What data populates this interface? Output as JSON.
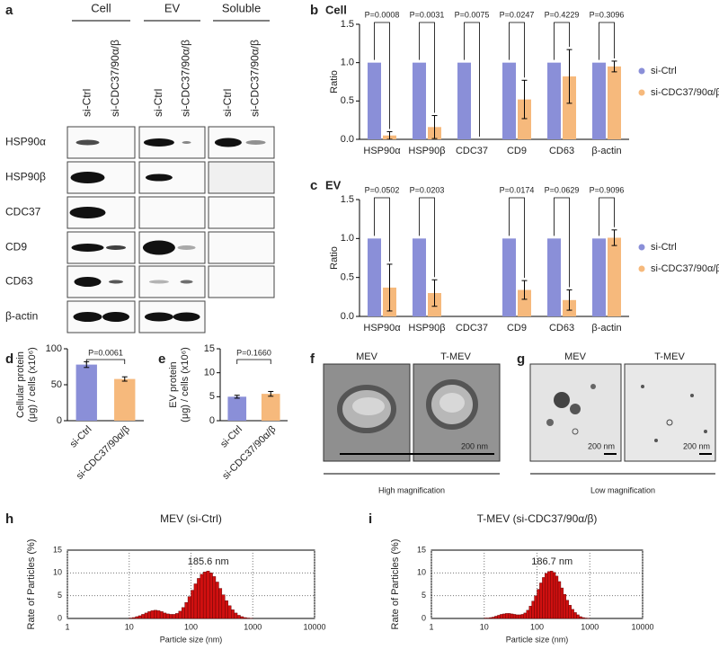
{
  "blot": {
    "panel": "a",
    "groups": [
      "Cell",
      "EV",
      "Soluble"
    ],
    "lanes": [
      "si-Ctrl",
      "si-CDC37/90α/β"
    ],
    "proteins": [
      "HSP90α",
      "HSP90β",
      "CDC37",
      "CD9",
      "CD63",
      "β-actin"
    ]
  },
  "micrographs": [
    {
      "panel": "f",
      "labels": [
        "MEV",
        "T-MEV"
      ],
      "scale": "200 nm",
      "caption": "High magnification"
    },
    {
      "panel": "g",
      "labels": [
        "MEV",
        "T-MEV"
      ],
      "scale": "200 nm",
      "caption": "Low magnification"
    }
  ],
  "chart_data": [
    {
      "type": "bar",
      "panel": "b",
      "title": "Cell",
      "ylabel": "Ratio",
      "categories": [
        "HSP90α",
        "HSP90β",
        "CDC37",
        "CD9",
        "CD63",
        "β-actin"
      ],
      "series": [
        {
          "name": "si-Ctrl",
          "color": "#8a8fd8",
          "values": [
            1,
            1,
            1,
            1,
            1,
            1
          ]
        },
        {
          "name": "si-CDC37/90α/β",
          "color": "#f6b97c",
          "values": [
            0.05,
            0.16,
            0,
            0.52,
            0.82,
            0.95
          ],
          "errors": [
            0.05,
            0.15,
            0,
            0.25,
            0.35,
            0.07
          ]
        }
      ],
      "p_values": [
        "P=0.0008",
        "P=0.0031",
        "P=0.0075",
        "P=0.0247",
        "P=0.4229",
        "P=0.3096"
      ],
      "ylim": [
        0,
        1.5
      ],
      "yticks": [
        {
          "value": 0,
          "label": "0.0"
        },
        {
          "value": 0.5,
          "label": "0.5"
        },
        {
          "value": 1,
          "label": "1.0"
        },
        {
          "value": 1.5,
          "label": "1.5"
        }
      ]
    },
    {
      "type": "bar",
      "panel": "c",
      "title": "EV",
      "ylabel": "Ratio",
      "categories": [
        "HSP90α",
        "HSP90β",
        "CDC37",
        "CD9",
        "CD63",
        "β-actin"
      ],
      "series": [
        {
          "name": "si-Ctrl",
          "color": "#8a8fd8",
          "values": [
            1,
            1,
            null,
            1,
            1,
            1
          ]
        },
        {
          "name": "si-CDC37/90α/β",
          "color": "#f6b97c",
          "values": [
            0.37,
            0.3,
            null,
            0.34,
            0.21,
            1.01
          ],
          "errors": [
            0.3,
            0.17,
            null,
            0.12,
            0.13,
            0.1
          ]
        }
      ],
      "p_values": [
        "P=0.0502",
        "P=0.0203",
        null,
        "P=0.0174",
        "P=0.0629",
        "P=0.9096"
      ],
      "ylim": [
        0,
        1.5
      ],
      "yticks": [
        {
          "value": 0,
          "label": "0.0"
        },
        {
          "value": 0.5,
          "label": "0.5"
        },
        {
          "value": 1,
          "label": "1.0"
        },
        {
          "value": 1.5,
          "label": "1.5"
        }
      ]
    },
    {
      "type": "bar",
      "panel": "d",
      "ylabel": [
        "Cellular protein",
        "(μg) / cells (x10⁶)"
      ],
      "categories": [
        "si-Ctrl",
        "si-CDC37/90α/β"
      ],
      "values": [
        78,
        58
      ],
      "errors": [
        4,
        3
      ],
      "colors": [
        "#8a8fd8",
        "#f6b97c"
      ],
      "p_value": "P=0.0061",
      "ylim": [
        0,
        100
      ],
      "yticks": [
        0,
        50,
        100
      ]
    },
    {
      "type": "bar",
      "panel": "e",
      "ylabel": [
        "EV protein",
        "(μg) / cells (x10⁶)"
      ],
      "categories": [
        "si-Ctrl",
        "si-CDC37/90α/β"
      ],
      "values": [
        5.0,
        5.6
      ],
      "errors": [
        0.3,
        0.5
      ],
      "colors": [
        "#8a8fd8",
        "#f6b97c"
      ],
      "p_value": "P=0.1660",
      "ylim": [
        0,
        15
      ],
      "yticks": [
        0,
        5,
        10,
        15
      ]
    },
    {
      "type": "histogram",
      "panel": "h",
      "title": "MEV (si-Ctrl)",
      "annotation": "185.6 nm",
      "xlabel": "Particle size (nm)",
      "ylabel": "Rate of Particles (%)",
      "color": "#d01010",
      "xscale": "log",
      "grid": true,
      "bins": [
        10,
        11.2,
        12.6,
        14.1,
        15.8,
        17.8,
        20,
        22.4,
        25.1,
        28.2,
        31.6,
        35.5,
        39.8,
        44.7,
        50.1,
        56.2,
        63.1,
        70.8,
        79.4,
        89.1,
        100,
        112,
        126,
        141,
        158,
        178,
        200,
        224,
        251,
        282,
        316,
        355,
        398,
        447,
        501,
        562,
        631,
        708,
        794,
        891,
        1000
      ],
      "values": [
        0.1,
        0.2,
        0.4,
        0.6,
        0.9,
        1.2,
        1.5,
        1.7,
        1.8,
        1.7,
        1.5,
        1.2,
        1.0,
        0.9,
        0.9,
        1.1,
        1.6,
        2.4,
        3.5,
        4.8,
        6.2,
        7.6,
        8.8,
        9.7,
        10.2,
        10.4,
        10.0,
        9.2,
        8.0,
        6.6,
        5.2,
        3.9,
        2.8,
        1.9,
        1.2,
        0.7,
        0.4,
        0.2,
        0.1,
        0.05
      ],
      "xlim": [
        1,
        10000
      ],
      "xticks": [
        1,
        10,
        100,
        1000,
        10000
      ],
      "ylim": [
        0,
        15
      ],
      "yticks": [
        0,
        5,
        10,
        15
      ]
    },
    {
      "type": "histogram",
      "panel": "i",
      "title": "T-MEV (si-CDC37/90α/β)",
      "annotation": "186.7 nm",
      "xlabel": "Particle size (nm)",
      "ylabel": "Rate of Particles (%)",
      "color": "#d01010",
      "xscale": "log",
      "grid": true,
      "bins": [
        10,
        11.2,
        12.6,
        14.1,
        15.8,
        17.8,
        20,
        22.4,
        25.1,
        28.2,
        31.6,
        35.5,
        39.8,
        44.7,
        50.1,
        56.2,
        63.1,
        70.8,
        79.4,
        89.1,
        100,
        112,
        126,
        141,
        158,
        178,
        200,
        224,
        251,
        282,
        316,
        355,
        398,
        447,
        501,
        562,
        631,
        708,
        794,
        891,
        1000
      ],
      "values": [
        0.1,
        0.1,
        0.2,
        0.3,
        0.5,
        0.7,
        0.9,
        1.0,
        1.1,
        1.1,
        1.0,
        0.9,
        0.8,
        0.8,
        0.9,
        1.2,
        1.8,
        2.7,
        3.8,
        5.0,
        6.4,
        7.8,
        9.0,
        9.9,
        10.3,
        10.4,
        10.1,
        9.3,
        8.1,
        6.7,
        5.3,
        4.0,
        2.9,
        2.0,
        1.3,
        0.8,
        0.4,
        0.2,
        0.1,
        0.05
      ],
      "xlim": [
        1,
        10000
      ],
      "xticks": [
        1,
        10,
        100,
        1000,
        10000
      ],
      "ylim": [
        0,
        15
      ],
      "yticks": [
        0,
        5,
        10,
        15
      ]
    }
  ]
}
